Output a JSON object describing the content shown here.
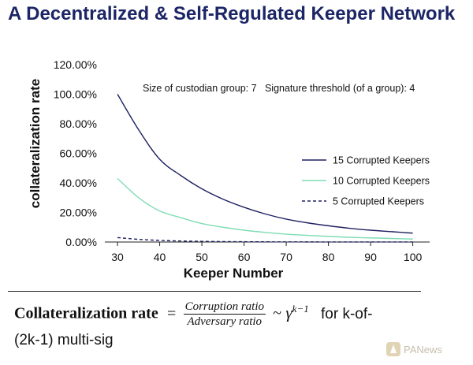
{
  "title": "A Decentralized & Self-Regulated Keeper Network",
  "chart_data": {
    "type": "line",
    "annotation": "Size of custodian group: 7   Signature threshold (of a group): 4",
    "xlabel": "Keeper Number",
    "ylabel": "collateralization rate",
    "x": [
      30,
      35,
      40,
      45,
      50,
      55,
      60,
      65,
      70,
      75,
      80,
      85,
      90,
      95,
      100
    ],
    "xticks": [
      30,
      40,
      50,
      60,
      70,
      80,
      90,
      100
    ],
    "yticks": [
      "0.00%",
      "20.00%",
      "40.00%",
      "60.00%",
      "80.00%",
      "100.00%",
      "120.00%"
    ],
    "ylim": [
      0,
      120
    ],
    "xlim": [
      27,
      104
    ],
    "grid": false,
    "legend_position": "right",
    "series": [
      {
        "name": "15 Corrupted Keepers",
        "color": "#1e2060",
        "style": "solid",
        "values": [
          100,
          76,
          56,
          45,
          36,
          29,
          23.5,
          19,
          15.5,
          13,
          11,
          9.3,
          8,
          7,
          6
        ]
      },
      {
        "name": "10 Corrupted Keepers",
        "color": "#7fdcb4",
        "style": "solid",
        "values": [
          43,
          30,
          21,
          16.5,
          12.5,
          10,
          8,
          6.5,
          5.3,
          4.5,
          3.8,
          3.2,
          2.8,
          2.4,
          2.0
        ]
      },
      {
        "name": "5 Corrupted Keepers",
        "color": "#1e2060",
        "style": "dashed",
        "values": [
          3.0,
          1.8,
          1.1,
          0.7,
          0.45,
          0.3,
          0.2,
          0.14,
          0.1,
          0.07,
          0.05,
          0.04,
          0.03,
          0.02,
          0.02
        ]
      }
    ]
  },
  "formula": {
    "lhs": "Collateralization rate",
    "equals": "=",
    "numerator": "Corruption ratio",
    "denominator": "Adversary ratio",
    "tilde": "~",
    "gamma": "γ",
    "exponent": "k−1",
    "tail": "for k-of-",
    "line2": "(2k-1) multi-sig"
  },
  "watermark": {
    "text": "PANews",
    "icon": "logo-mark"
  }
}
